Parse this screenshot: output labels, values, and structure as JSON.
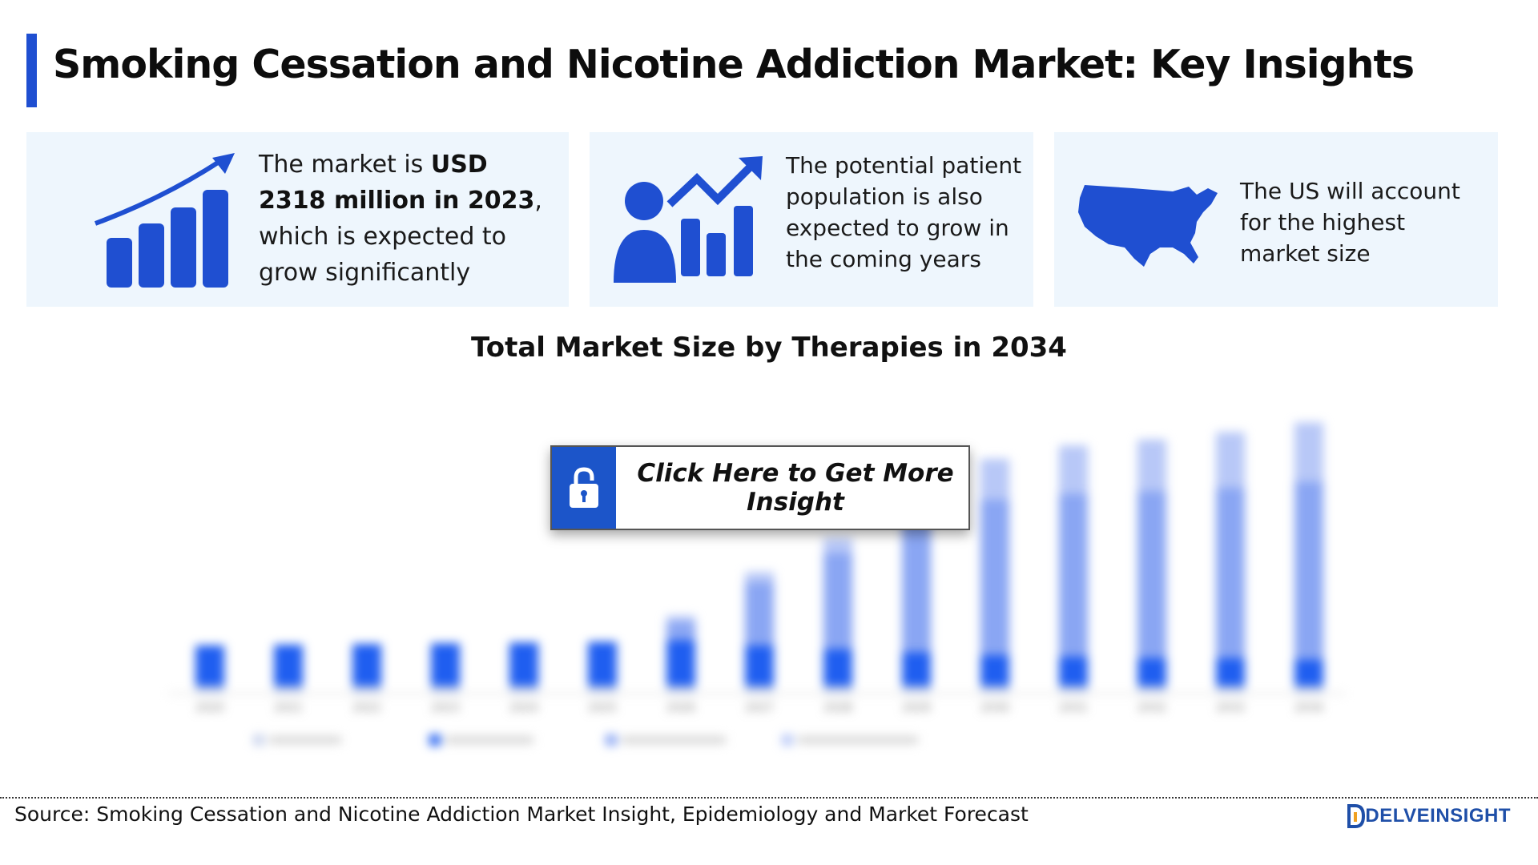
{
  "title": "Smoking Cessation and Nicotine Addiction Market: Key Insights",
  "accent_color": "#1f4fd1",
  "cards": [
    {
      "icon": "growth-chart-icon",
      "lines": [
        {
          "pre": "The market is ",
          "bold": "USD",
          "post": ""
        },
        {
          "pre": "",
          "bold": "2318 million in 2023",
          "post": ","
        },
        {
          "pre": "which is expected to",
          "bold": "",
          "post": ""
        },
        {
          "pre": "grow significantly",
          "bold": "",
          "post": ""
        }
      ]
    },
    {
      "icon": "patient-growth-icon",
      "lines": [
        "The potential patient",
        "population is also",
        "expected to grow in",
        "the coming years"
      ]
    },
    {
      "icon": "us-map-icon",
      "lines": [
        "The US will account",
        "for the highest",
        "market size"
      ]
    }
  ],
  "cta": {
    "label": "Click Here to Get More Insight",
    "icon": "lock-icon"
  },
  "source": "Source: Smoking Cessation and Nicotine Addiction Market Insight, Epidemiology and Market Forecast",
  "logo": {
    "text": "DELVEINSIGHT"
  },
  "chart_data": {
    "type": "bar",
    "stacked": true,
    "title": "Total Market Size by Therapies in 2034",
    "blurred": true,
    "categories": [
      "2020",
      "2021",
      "2022",
      "2023",
      "2024",
      "2025",
      "2026",
      "2027",
      "2028",
      "2029",
      "2030",
      "2031",
      "2032",
      "2033",
      "2034"
    ],
    "series": [
      {
        "color": "#c9d3ec",
        "values": [
          10,
          10,
          10,
          10,
          10,
          10,
          10,
          10,
          10,
          10,
          10,
          10,
          10,
          10,
          10
        ]
      },
      {
        "color": "#1f5ef0",
        "values": [
          55,
          56,
          57,
          58,
          59,
          60,
          62,
          55,
          50,
          46,
          42,
          40,
          38,
          38,
          36
        ]
      },
      {
        "color": "#8aa6f3",
        "values": [
          0,
          0,
          0,
          0,
          0,
          0,
          25,
          85,
          130,
          185,
          210,
          220,
          225,
          230,
          240
        ]
      },
      {
        "color": "#b8c8f7",
        "values": [
          0,
          0,
          0,
          0,
          0,
          0,
          8,
          14,
          20,
          30,
          55,
          65,
          70,
          75,
          80
        ]
      }
    ],
    "legend_position": "bottom",
    "ylim": [
      0,
      400
    ]
  }
}
